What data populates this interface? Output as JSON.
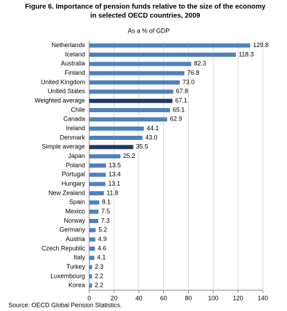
{
  "chart_data": {
    "type": "hbar",
    "title": "Figure 6. Importance of pension funds relative to the size of the economy",
    "title_line2": "in selected OECD countries, 2009",
    "subtitle": "As a % of GDP",
    "source": "Source: OECD Global Pension Statistics.",
    "categories": [
      "Netherlands",
      "Iceland",
      "Australia",
      "Finland",
      "United Kingdom",
      "United States",
      "Weighted average",
      "Chile",
      "Canada",
      "Ireland",
      "Denmark",
      "Simple average",
      "Japan",
      "Poland",
      "Portugal",
      "Hungary",
      "New Zealand",
      "Spain",
      "Mexico",
      "Norway",
      "Germany",
      "Austria",
      "Czech Republic",
      "Italy",
      "Turkey",
      "Luxembourg",
      "Korea"
    ],
    "values": [
      129.8,
      118.3,
      82.3,
      76.8,
      73.0,
      67.8,
      67.1,
      65.1,
      62.9,
      44.1,
      43.0,
      35.5,
      25.2,
      13.5,
      13.4,
      13.1,
      11.8,
      8.1,
      7.5,
      7.3,
      5.2,
      4.9,
      4.6,
      4.1,
      2.3,
      2.2,
      2.2
    ],
    "value_labels": [
      "129.8",
      "118.3",
      "82.3",
      "76.8",
      "73.0",
      "67.8",
      "67.1",
      "65.1",
      "62.9",
      "44.1",
      "43.0",
      "35.5",
      "25.2",
      "13.5",
      "13.4",
      "13.1",
      "11.8",
      "8.1",
      "7.5",
      "7.3",
      "5.2",
      "4.9",
      "4.6",
      "4.1",
      "2.3",
      "2.2",
      "2.2"
    ],
    "color": "#4f81bd",
    "highlight_color": "#1f3864",
    "highlight": [
      "Weighted average",
      "Simple average"
    ],
    "xlim": [
      0,
      140
    ],
    "xticks": [
      0,
      20,
      40,
      60,
      80,
      100,
      120,
      140
    ],
    "grid": true
  }
}
